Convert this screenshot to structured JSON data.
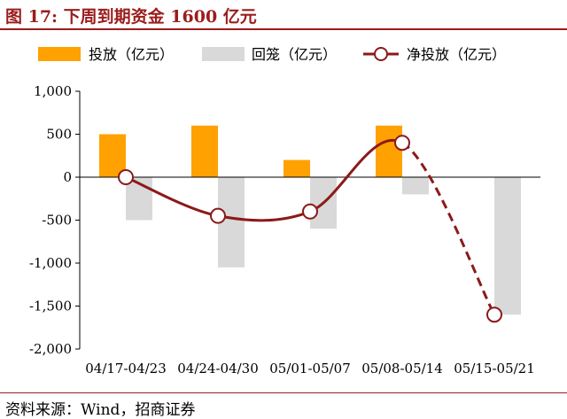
{
  "title": "图 17:  下周到期资金 1600 亿元",
  "source": "资料来源：Wind，招商证券",
  "colors": {
    "title": "#9b1c1c",
    "invest": "#ffa100",
    "repay": "#d9d9d9",
    "net": "#8b1a1a"
  },
  "chart_data": {
    "type": "bar",
    "categories": [
      "04/17-04/23",
      "04/24-04/30",
      "05/01-05/07",
      "05/08-05/14",
      "05/15-05/21"
    ],
    "series": [
      {
        "name": "投放（亿元）",
        "type": "bar",
        "values": [
          500,
          600,
          200,
          600,
          0
        ]
      },
      {
        "name": "回笼（亿元）",
        "type": "bar",
        "values": [
          -500,
          -1050,
          -600,
          -200,
          -1600
        ]
      },
      {
        "name": "净投放（亿元）",
        "type": "line",
        "values": [
          0,
          -450,
          -400,
          400,
          -1600
        ],
        "dashed_from_index": 3
      }
    ],
    "ylim": [
      -2000,
      1000
    ],
    "yticks": [
      "1,000",
      "500",
      "0",
      "-500",
      "-1,000",
      "-1,500",
      "-2,000"
    ],
    "ytick_values": [
      1000,
      500,
      0,
      -500,
      -1000,
      -1500,
      -2000
    ],
    "legend_position": "top",
    "grid": false
  }
}
